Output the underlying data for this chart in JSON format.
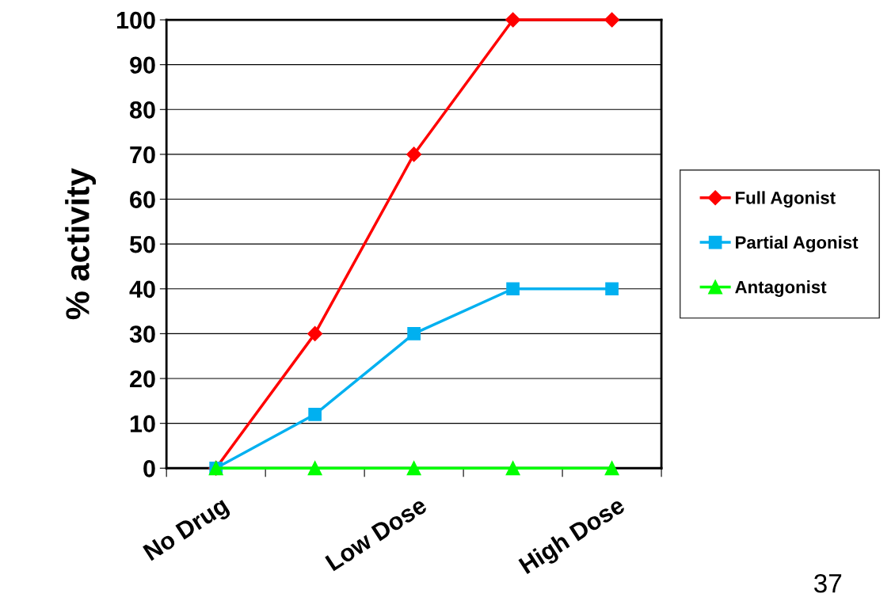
{
  "chart_data": {
    "type": "line",
    "ylabel": "% activity",
    "categories": [
      "No Drug",
      null,
      "Low Dose",
      null,
      "High Dose"
    ],
    "series": [
      {
        "name": "Full Agonist",
        "color": "#ff0000",
        "marker": "diamond",
        "values": [
          0,
          30,
          70,
          100,
          100
        ]
      },
      {
        "name": "Partial Agonist",
        "color": "#00b0f0",
        "marker": "square",
        "values": [
          0,
          12,
          30,
          40,
          40
        ]
      },
      {
        "name": "Antagonist",
        "color": "#00ff00",
        "marker": "triangle",
        "values": [
          0,
          0,
          0,
          0,
          0
        ]
      }
    ],
    "ylim": [
      0,
      100
    ],
    "yticks": [
      0,
      10,
      20,
      30,
      40,
      50,
      60,
      70,
      80,
      90,
      100
    ],
    "grid": "y",
    "legend": "right",
    "line_style": "solid",
    "annotations": [
      "37"
    ]
  }
}
